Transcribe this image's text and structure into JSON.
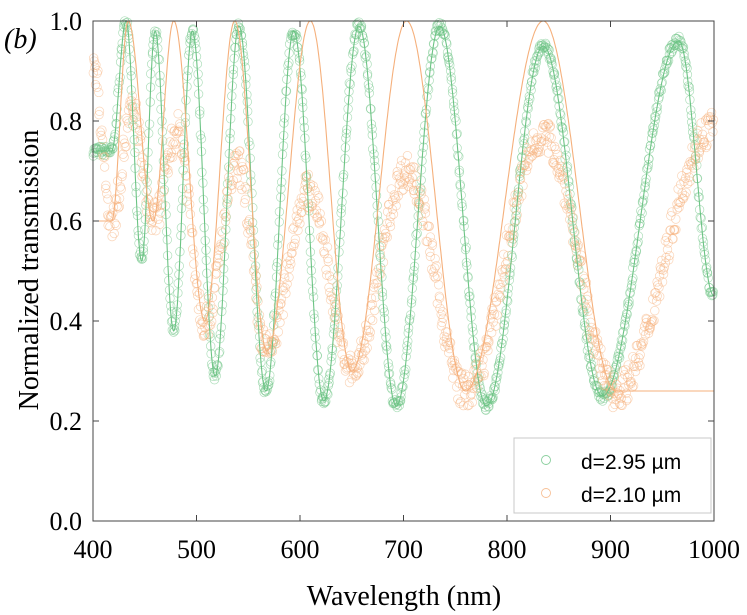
{
  "panel_label": "(b)",
  "chart_data": {
    "type": "scatter",
    "xlabel": "Wavelength (nm)",
    "ylabel": "Normalized transmission",
    "xlim": [
      400,
      1000
    ],
    "ylim": [
      0.0,
      1.0
    ],
    "x_ticks": [
      400,
      500,
      600,
      700,
      800,
      900,
      1000
    ],
    "y_ticks": [
      0.0,
      0.2,
      0.4,
      0.6,
      0.8,
      1.0
    ],
    "x_tick_labels": [
      "400",
      "500",
      "600",
      "700",
      "800",
      "900",
      "1000"
    ],
    "y_tick_labels": [
      "0.0",
      "0.2",
      "0.4",
      "0.6",
      "0.8",
      "1.0"
    ],
    "grid": false,
    "legend_position": "bottom-right",
    "series": [
      {
        "name": "d=2.95 µm",
        "color": "#6cc384",
        "marker": "open-circle",
        "fit_line": true,
        "peaks": [
          {
            "x": 432,
            "y": 1.0
          },
          {
            "x": 460,
            "y": 0.98
          },
          {
            "x": 496,
            "y": 0.98
          },
          {
            "x": 541,
            "y": 0.99
          },
          {
            "x": 594,
            "y": 0.98
          },
          {
            "x": 657,
            "y": 0.99
          },
          {
            "x": 735,
            "y": 0.99
          },
          {
            "x": 835,
            "y": 0.95
          },
          {
            "x": 966,
            "y": 0.96
          }
        ],
        "valleys": [
          {
            "x": 418,
            "y": 0.74
          },
          {
            "x": 447,
            "y": 0.52
          },
          {
            "x": 478,
            "y": 0.38
          },
          {
            "x": 518,
            "y": 0.29
          },
          {
            "x": 567,
            "y": 0.26
          },
          {
            "x": 623,
            "y": 0.24
          },
          {
            "x": 693,
            "y": 0.23
          },
          {
            "x": 780,
            "y": 0.23
          },
          {
            "x": 892,
            "y": 0.25
          },
          {
            "x": 1000,
            "y": 0.45
          }
        ]
      },
      {
        "name": "d=2.10 µm",
        "color": "#f5b07c",
        "marker": "open-circle",
        "fit_line": true,
        "peaks": [
          {
            "x": 400,
            "y": 0.92
          },
          {
            "x": 438,
            "y": 0.82
          },
          {
            "x": 482,
            "y": 0.78
          },
          {
            "x": 540,
            "y": 0.71
          },
          {
            "x": 608,
            "y": 0.66
          },
          {
            "x": 703,
            "y": 0.7
          },
          {
            "x": 835,
            "y": 0.77
          },
          {
            "x": 1000,
            "y": 0.79
          }
        ],
        "valleys": [
          {
            "x": 418,
            "y": 0.6
          },
          {
            "x": 458,
            "y": 0.6
          },
          {
            "x": 508,
            "y": 0.4
          },
          {
            "x": 568,
            "y": 0.34
          },
          {
            "x": 650,
            "y": 0.3
          },
          {
            "x": 760,
            "y": 0.26
          },
          {
            "x": 905,
            "y": 0.26
          }
        ],
        "fit_peaks": [
          {
            "x": 434,
            "y": 1.0
          },
          {
            "x": 478,
            "y": 1.0
          },
          {
            "x": 537,
            "y": 1.0
          },
          {
            "x": 610,
            "y": 1.0
          },
          {
            "x": 703,
            "y": 1.0
          },
          {
            "x": 835,
            "y": 1.0
          }
        ]
      }
    ]
  }
}
